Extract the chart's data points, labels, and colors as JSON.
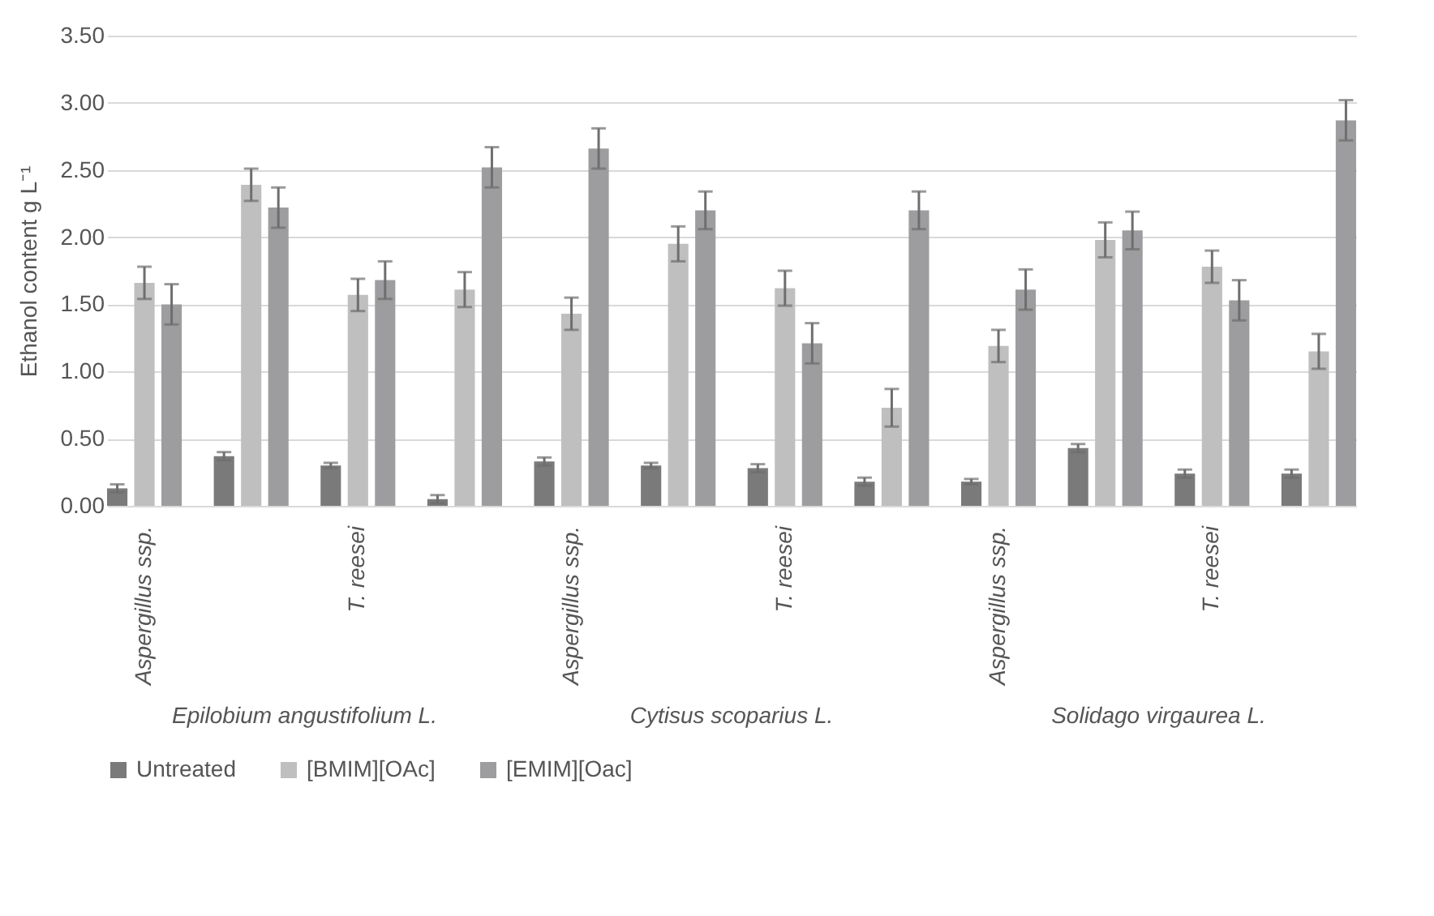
{
  "chart_data": {
    "type": "bar",
    "categories": [
      "Aspergillus ssp.",
      null,
      "T. reesei",
      null,
      "Aspergillus ssp.",
      null,
      "T. reesei",
      null,
      "Aspergillus ssp.",
      null,
      "T. reesei",
      null
    ],
    "annotations": [
      "Epilobium angustifolium L.",
      "Cytisus scoparius L.",
      "Solidago virgaurea L."
    ],
    "ylabel": "Ethanol content g L⁻¹",
    "ylim": [
      0,
      3.5
    ],
    "yticks": [
      {
        "value": 0,
        "label": "0.00"
      },
      {
        "value": 0.5,
        "label": "0.50"
      },
      {
        "value": 1,
        "label": "1.00"
      },
      {
        "value": 1.5,
        "label": "1.50"
      },
      {
        "value": 2,
        "label": "2.00"
      },
      {
        "value": 2.5,
        "label": "2.50"
      },
      {
        "value": 3,
        "label": "3.00"
      },
      {
        "value": 3.5,
        "label": "3.50"
      }
    ],
    "grid": "y",
    "legend": "bottom",
    "series": [
      {
        "name": "Untreated",
        "color": "#7a7a7a",
        "values": [
          0.13,
          0.37,
          0.3,
          0.05,
          0.33,
          0.3,
          0.28,
          0.18,
          0.18,
          0.43,
          0.24,
          0.24
        ],
        "errors": [
          0.03,
          0.03,
          0.02,
          0.03,
          0.03,
          0.02,
          0.03,
          0.03,
          0.02,
          0.03,
          0.03,
          0.03
        ]
      },
      {
        "name": "[BMIM][OAc]",
        "color": "#bfbfbf",
        "values": [
          1.66,
          2.39,
          1.57,
          1.61,
          1.43,
          1.95,
          1.62,
          0.73,
          1.19,
          1.98,
          1.78,
          1.15
        ],
        "errors": [
          0.12,
          0.12,
          0.12,
          0.13,
          0.12,
          0.13,
          0.13,
          0.14,
          0.12,
          0.13,
          0.12,
          0.13
        ]
      },
      {
        "name": "[EMIM][Oac]",
        "color": "#9d9d9f",
        "values": [
          1.5,
          2.22,
          1.68,
          2.52,
          2.66,
          2.2,
          1.21,
          2.2,
          1.61,
          2.05,
          1.53,
          2.87
        ],
        "errors": [
          0.15,
          0.15,
          0.14,
          0.15,
          0.15,
          0.14,
          0.15,
          0.14,
          0.15,
          0.14,
          0.15,
          0.15
        ]
      }
    ]
  }
}
